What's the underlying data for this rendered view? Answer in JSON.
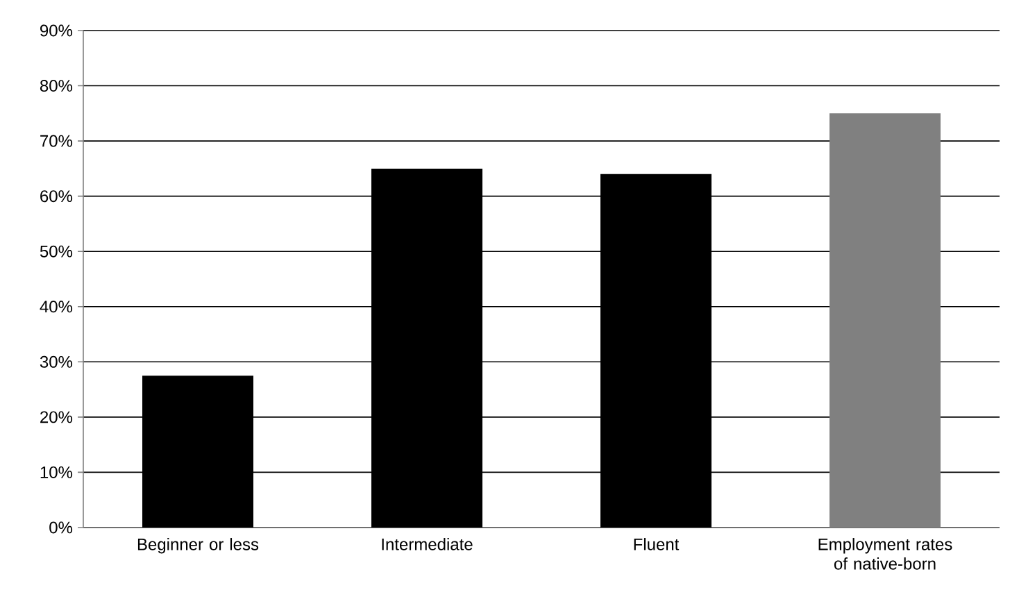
{
  "chart_data": {
    "type": "bar",
    "categories": [
      "Beginner or less",
      "Intermediate",
      "Fluent",
      "Employment rates of native-born"
    ],
    "values": [
      27.5,
      65,
      64,
      75
    ],
    "colors": [
      "#000000",
      "#000000",
      "#000000",
      "#808080"
    ],
    "ylim": [
      0,
      90
    ],
    "yticks": [
      {
        "value": 0,
        "label": "0%"
      },
      {
        "value": 10,
        "label": "10%"
      },
      {
        "value": 20,
        "label": "20%"
      },
      {
        "value": 30,
        "label": "30%"
      },
      {
        "value": 40,
        "label": "40%"
      },
      {
        "value": 50,
        "label": "50%"
      },
      {
        "value": 60,
        "label": "60%"
      },
      {
        "value": 70,
        "label": "70%"
      },
      {
        "value": 80,
        "label": "80%"
      },
      {
        "value": 90,
        "label": "90%"
      }
    ],
    "grid": "y"
  }
}
